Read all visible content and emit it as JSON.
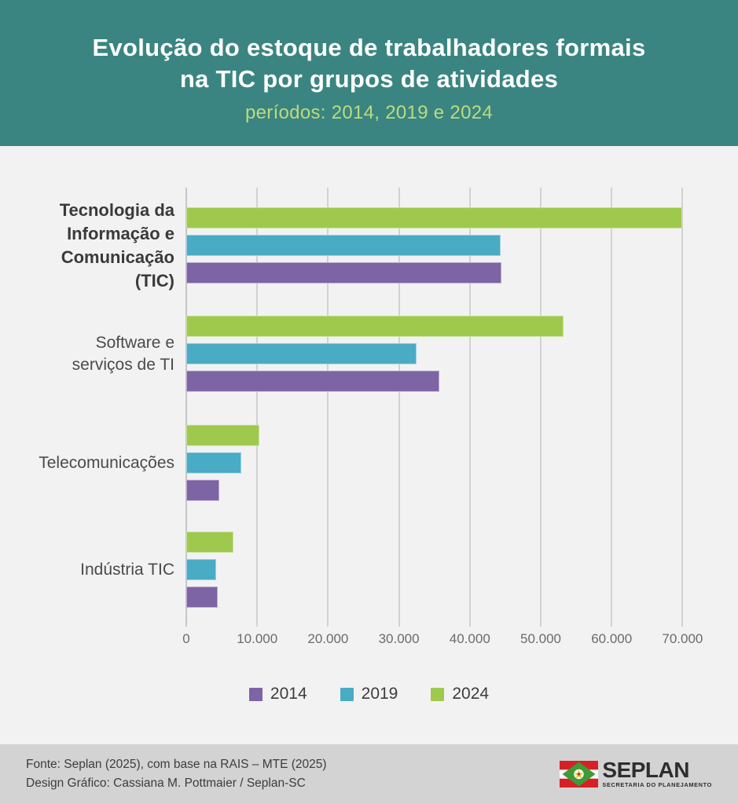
{
  "header": {
    "title_line1": "Evolução do estoque de trabalhadores formais",
    "title_line2": "na TIC por grupos de atividades",
    "subtitle": "períodos: 2014, 2019 e 2024"
  },
  "chart_data": {
    "type": "bar",
    "orientation": "horizontal",
    "title": "Evolução do estoque de trabalhadores formais na TIC por grupos de atividades",
    "subtitle": "períodos: 2014, 2019 e 2024",
    "categories": [
      "Tecnologia da Informação e Comunicação (TIC)",
      "Software e serviços de TI",
      "Telecomunicações",
      "Indústria TIC"
    ],
    "category_labels": [
      {
        "lines": [
          "Tecnologia da",
          "Informação e",
          "Comunicação",
          "(TIC)"
        ],
        "bold": true
      },
      {
        "lines": [
          "Software e",
          "serviços de TI"
        ],
        "bold": false
      },
      {
        "lines": [
          "Telecomunicações"
        ],
        "bold": false
      },
      {
        "lines": [
          "Indústria TIC"
        ],
        "bold": false
      }
    ],
    "series": [
      {
        "name": "2014",
        "color": "#7d64a5",
        "values": [
          44500,
          35700,
          4700,
          4400
        ]
      },
      {
        "name": "2019",
        "color": "#4aabc5",
        "values": [
          44300,
          32500,
          7800,
          4250
        ]
      },
      {
        "name": "2024",
        "color": "#9fc94d",
        "values": [
          70000,
          53200,
          10300,
          6650
        ]
      }
    ],
    "series_draw_order_top_to_bottom": [
      "2024",
      "2019",
      "2014"
    ],
    "xlim": [
      0,
      74000
    ],
    "x_ticks": [
      0,
      10000,
      20000,
      30000,
      40000,
      50000,
      60000,
      70000
    ],
    "x_tick_labels": [
      "0",
      "10.000",
      "20.000",
      "30.000",
      "40.000",
      "50.000",
      "60.000",
      "70.000"
    ],
    "grid": "vertical",
    "legend_position": "bottom"
  },
  "legend": {
    "items": [
      {
        "label": "2014",
        "color": "#7d64a5"
      },
      {
        "label": "2019",
        "color": "#4aabc5"
      },
      {
        "label": "2024",
        "color": "#9fc94d"
      }
    ]
  },
  "footer": {
    "source_line": "Fonte: Seplan (2025), com base na RAIS – MTE (2025)",
    "credit_line": "Design Gráfico: Cassiana M. Pottmaier / Seplan-SC",
    "logo_name": "SEPLAN",
    "logo_subtext": "SECRETARIA DO PLANEJAMENTO"
  },
  "colors": {
    "header_background": "#3a8581",
    "title_text": "#ffffff",
    "subtitle_text": "#bdda7f",
    "page_background": "#f2f2f2",
    "footer_background": "#d3d3d3",
    "bar_2014": "#7d64a5",
    "bar_2019": "#4aabc5",
    "bar_2024": "#9fc94d",
    "gridline": "#d2d2d2",
    "tick_text": "#6b6b6b",
    "category_text": "#4a4a4a"
  }
}
